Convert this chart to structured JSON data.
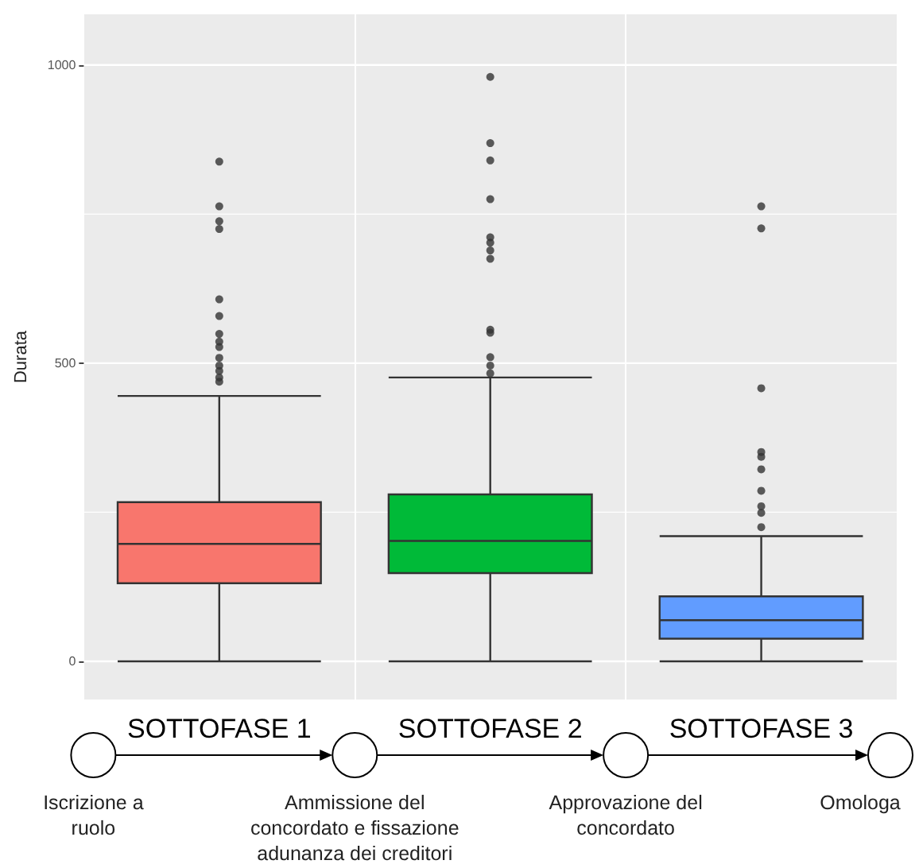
{
  "chart_data": {
    "type": "box",
    "categories": [
      "SOTTOFASE 1",
      "SOTTOFASE 2",
      "SOTTOFASE 3"
    ],
    "colors": [
      "#f8766d",
      "#00ba38",
      "#619cff"
    ],
    "boxes": [
      {
        "low": 0,
        "q1": 131,
        "median": 197,
        "q3": 267,
        "high": 445,
        "outliers": [
          838,
          763,
          738,
          725,
          607,
          579,
          549,
          536,
          527,
          509,
          496,
          487,
          476,
          469
        ]
      },
      {
        "low": 0,
        "q1": 148,
        "median": 202,
        "q3": 280,
        "high": 476,
        "outliers": [
          980,
          869,
          840,
          775,
          711,
          702,
          689,
          675,
          556,
          551,
          510,
          496,
          483
        ]
      },
      {
        "low": 0,
        "q1": 38,
        "median": 69,
        "q3": 109,
        "high": 210,
        "outliers": [
          763,
          726,
          458,
          351,
          343,
          322,
          286,
          260,
          249,
          225
        ]
      }
    ],
    "ylabel": "Durata",
    "ylim": [
      -64,
      1085
    ],
    "yticks": [
      0,
      {
        "value": 250,
        "label": null
      },
      500,
      {
        "value": 750,
        "label": null
      },
      1000
    ],
    "grid": true,
    "annotations": [
      "Iscrizione a ruolo",
      "Ammissione del concordato e fissazione adunanza dei creditori",
      "Approvazione del concordato",
      "Omologa"
    ]
  }
}
